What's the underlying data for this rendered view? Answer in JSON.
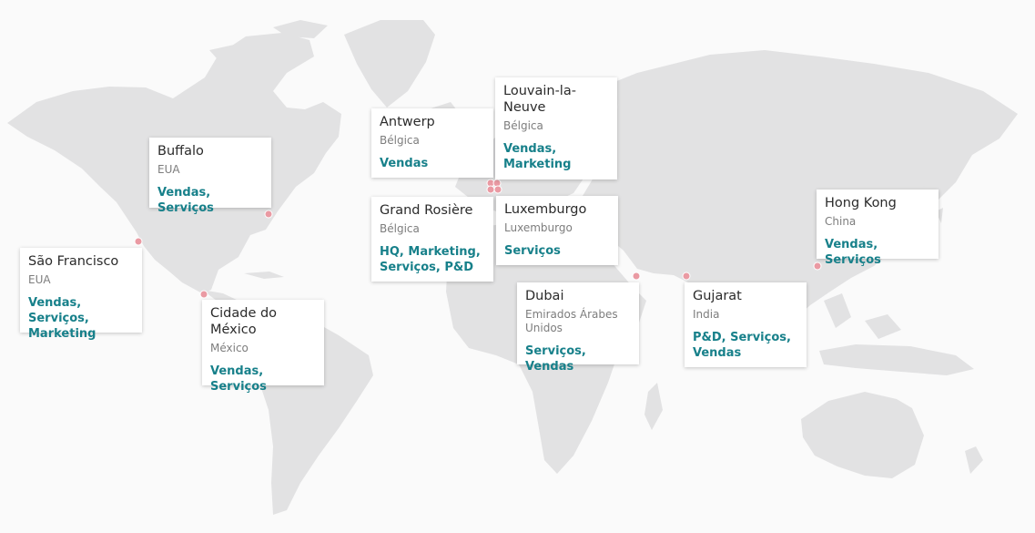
{
  "colors": {
    "land": "#e2e2e3",
    "background": "#fafafa",
    "marker": "#ea9aa3",
    "tag": "#17808a"
  },
  "offices": [
    {
      "key": "sao-francisco",
      "name": "São Francisco",
      "country": "EUA",
      "tags": "Vendas, Serviços, Marketing"
    },
    {
      "key": "buffalo",
      "name": "Buffalo",
      "country": "EUA",
      "tags": "Vendas, Serviços"
    },
    {
      "key": "cidade-do-mexico",
      "name": "Cidade do México",
      "country": "México",
      "tags": "Vendas, Serviços"
    },
    {
      "key": "antwerp",
      "name": "Antwerp",
      "country": "Bélgica",
      "tags": "Vendas"
    },
    {
      "key": "louvain-la-neuve",
      "name": "Louvain-la-Neuve",
      "country": "Bélgica",
      "tags": "Vendas, Marketing"
    },
    {
      "key": "grand-rosiere",
      "name": "Grand Rosière",
      "country": "Bélgica",
      "tags": "HQ, Marketing, Serviços, P&D"
    },
    {
      "key": "luxemburgo",
      "name": "Luxemburgo",
      "country": "Luxemburgo",
      "tags": "Serviços"
    },
    {
      "key": "dubai",
      "name": "Dubai",
      "country": "Emirados Árabes Unidos",
      "tags": "Serviços, Vendas"
    },
    {
      "key": "gujarat",
      "name": "Gujarat",
      "country": "India",
      "tags": "P&D, Serviços, Vendas"
    },
    {
      "key": "hong-kong",
      "name": "Hong Kong",
      "country": "China",
      "tags": "Vendas, Serviços"
    }
  ]
}
